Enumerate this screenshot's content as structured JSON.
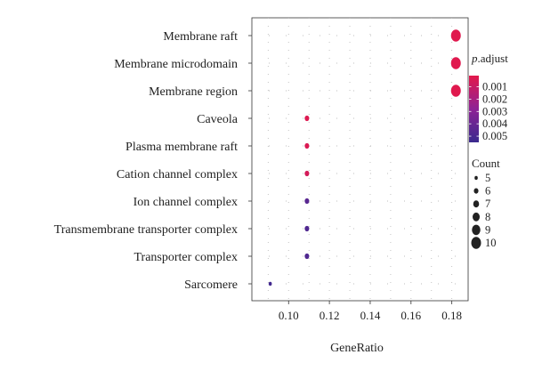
{
  "chart_data": {
    "type": "scatter",
    "xlabel": "GeneRatio",
    "ylabel": "",
    "xlim": [
      0.082,
      0.188
    ],
    "x_ticks": [
      "0.10",
      "0.12",
      "0.14",
      "0.16",
      "0.18"
    ],
    "x_tick_values": [
      0.1,
      0.12,
      0.14,
      0.16,
      0.18
    ],
    "grid": true,
    "legend_position": "right",
    "categories": [
      "Membrane raft",
      "Membrane microdomain",
      "Membrane region",
      "Caveola",
      "Plasma membrane raft",
      "Cation channel complex",
      "Ion channel complex",
      "Transmembrane transporter complex",
      "Transporter complex",
      "Sarcomere"
    ],
    "points": [
      {
        "category": "Membrane raft",
        "gene_ratio": 0.182,
        "count": 10,
        "p_adjust": 0.0002
      },
      {
        "category": "Membrane microdomain",
        "gene_ratio": 0.182,
        "count": 10,
        "p_adjust": 0.0002
      },
      {
        "category": "Membrane region",
        "gene_ratio": 0.182,
        "count": 10,
        "p_adjust": 0.0002
      },
      {
        "category": "Caveola",
        "gene_ratio": 0.109,
        "count": 6,
        "p_adjust": 0.0003
      },
      {
        "category": "Plasma membrane raft",
        "gene_ratio": 0.109,
        "count": 6,
        "p_adjust": 0.0004
      },
      {
        "category": "Cation channel complex",
        "gene_ratio": 0.109,
        "count": 6,
        "p_adjust": 0.0006
      },
      {
        "category": "Ion channel complex",
        "gene_ratio": 0.109,
        "count": 6,
        "p_adjust": 0.0045
      },
      {
        "category": "Transmembrane transporter complex",
        "gene_ratio": 0.109,
        "count": 6,
        "p_adjust": 0.0048
      },
      {
        "category": "Transporter complex",
        "gene_ratio": 0.109,
        "count": 6,
        "p_adjust": 0.0048
      },
      {
        "category": "Sarcomere",
        "gene_ratio": 0.091,
        "count": 5,
        "p_adjust": 0.0052
      }
    ],
    "color_legend": {
      "title_italic": "p",
      "title_rest": ".adjust",
      "labels": [
        "0.001",
        "0.002",
        "0.003",
        "0.004",
        "0.005"
      ],
      "values": [
        0.001,
        0.002,
        0.003,
        0.004,
        0.005
      ],
      "range": [
        0.0001,
        0.0055
      ],
      "low_color": "#e3194b",
      "high_color": "#3a2a8e"
    },
    "size_legend": {
      "title": "Count",
      "labels": [
        "5",
        "6",
        "7",
        "8",
        "9",
        "10"
      ],
      "values": [
        5,
        6,
        7,
        8,
        9,
        10
      ]
    }
  }
}
